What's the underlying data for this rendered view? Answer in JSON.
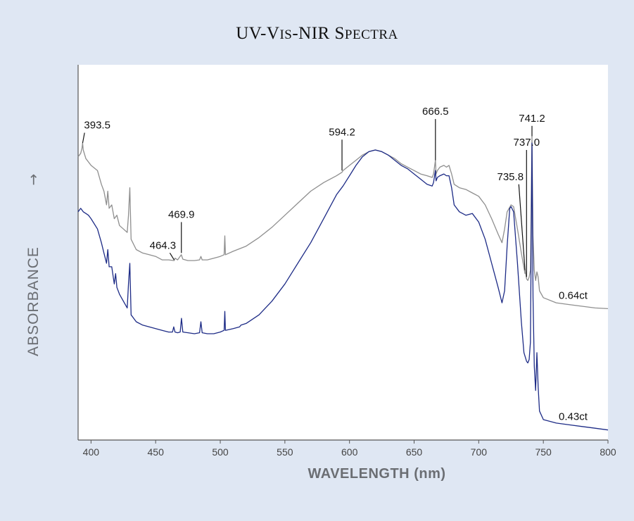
{
  "chart_data": {
    "type": "line",
    "title_parts": [
      {
        "text": "UV-V",
        "size": "lg"
      },
      {
        "text": "IS",
        "size": "sm"
      },
      {
        "text": "-NIR S",
        "size": "lg"
      },
      {
        "text": "PECTRA",
        "size": "sm"
      }
    ],
    "xlabel": "WAVELENGTH",
    "xlabel_unit": "(nm)",
    "ylabel": "ABSORBANCE",
    "ylabel_arrow": "→",
    "xlim": [
      390,
      800
    ],
    "ylim": [
      0,
      100
    ],
    "yaxis_ticks_visible": false,
    "xticks": [
      400,
      450,
      500,
      550,
      600,
      650,
      700,
      750,
      800
    ],
    "series": [
      {
        "name": "0.64ct",
        "color": "#8f8f8f",
        "points": [
          [
            390,
            81
          ],
          [
            392,
            82
          ],
          [
            393,
            83.5
          ],
          [
            393.5,
            85
          ],
          [
            394,
            83
          ],
          [
            396,
            80.5
          ],
          [
            400,
            78.5
          ],
          [
            405,
            77
          ],
          [
            408,
            73
          ],
          [
            410,
            71
          ],
          [
            412,
            67
          ],
          [
            413,
            71
          ],
          [
            414,
            66
          ],
          [
            416,
            67
          ],
          [
            418,
            63
          ],
          [
            420,
            64
          ],
          [
            422,
            61
          ],
          [
            425,
            60
          ],
          [
            428,
            59
          ],
          [
            429,
            64
          ],
          [
            430,
            72
          ],
          [
            431,
            57
          ],
          [
            435,
            54
          ],
          [
            440,
            53
          ],
          [
            445,
            52.5
          ],
          [
            450,
            52
          ],
          [
            455,
            51
          ],
          [
            460,
            51
          ],
          [
            464.3,
            50.8
          ],
          [
            465,
            51.5
          ],
          [
            467,
            51
          ],
          [
            469.9,
            52.5
          ],
          [
            471,
            51.2
          ],
          [
            475,
            50.8
          ],
          [
            480,
            50.8
          ],
          [
            484,
            51
          ],
          [
            485,
            52
          ],
          [
            486,
            51
          ],
          [
            490,
            51
          ],
          [
            495,
            51.5
          ],
          [
            500,
            52
          ],
          [
            503,
            52.5
          ],
          [
            503.5,
            58
          ],
          [
            504,
            52.5
          ],
          [
            510,
            53.5
          ],
          [
            520,
            55
          ],
          [
            530,
            57.5
          ],
          [
            540,
            60.5
          ],
          [
            550,
            64
          ],
          [
            560,
            67.5
          ],
          [
            570,
            71
          ],
          [
            580,
            73.5
          ],
          [
            590,
            75.5
          ],
          [
            594.2,
            76.5
          ],
          [
            595,
            77
          ],
          [
            600,
            78.5
          ],
          [
            605,
            80
          ],
          [
            610,
            81.5
          ],
          [
            615,
            82.5
          ],
          [
            620,
            83
          ],
          [
            625,
            82.5
          ],
          [
            630,
            81.5
          ],
          [
            635,
            80.5
          ],
          [
            640,
            79
          ],
          [
            645,
            78
          ],
          [
            650,
            77
          ],
          [
            655,
            76
          ],
          [
            660,
            75.5
          ],
          [
            664,
            75
          ],
          [
            665,
            76
          ],
          [
            666.5,
            80
          ],
          [
            667,
            76
          ],
          [
            668,
            77
          ],
          [
            670,
            78
          ],
          [
            673,
            78.5
          ],
          [
            675,
            78
          ],
          [
            677,
            78.5
          ],
          [
            679,
            76
          ],
          [
            681,
            73
          ],
          [
            685,
            72
          ],
          [
            690,
            71.5
          ],
          [
            695,
            70.5
          ],
          [
            700,
            69.5
          ],
          [
            705,
            67
          ],
          [
            710,
            63
          ],
          [
            715,
            58.5
          ],
          [
            718,
            56
          ],
          [
            720,
            60
          ],
          [
            722,
            65
          ],
          [
            725,
            67
          ],
          [
            727,
            66.5
          ],
          [
            730,
            60
          ],
          [
            733,
            53
          ],
          [
            735.8,
            47
          ],
          [
            736,
            48
          ],
          [
            737,
            45.5
          ],
          [
            738,
            45
          ],
          [
            739,
            46
          ],
          [
            740,
            48
          ],
          [
            741.2,
            87
          ],
          [
            742,
            58
          ],
          [
            743,
            48
          ],
          [
            744,
            45
          ],
          [
            745,
            47.5
          ],
          [
            746,
            46
          ],
          [
            747,
            42
          ],
          [
            750,
            40
          ],
          [
            760,
            38.5
          ],
          [
            770,
            38
          ],
          [
            780,
            37.5
          ],
          [
            790,
            37
          ],
          [
            800,
            36.8
          ]
        ]
      },
      {
        "name": "0.43ct",
        "color": "#1d2b86",
        "points": [
          [
            390,
            65
          ],
          [
            392,
            66
          ],
          [
            394,
            65
          ],
          [
            396,
            64.5
          ],
          [
            398,
            64
          ],
          [
            400,
            63
          ],
          [
            405,
            60
          ],
          [
            408,
            56
          ],
          [
            410,
            53
          ],
          [
            412,
            50
          ],
          [
            413,
            54
          ],
          [
            414,
            49
          ],
          [
            416,
            49
          ],
          [
            418,
            44
          ],
          [
            419,
            47
          ],
          [
            420,
            43
          ],
          [
            422,
            41
          ],
          [
            425,
            39
          ],
          [
            428,
            37
          ],
          [
            429,
            44
          ],
          [
            430,
            50
          ],
          [
            431,
            35
          ],
          [
            435,
            33
          ],
          [
            440,
            32
          ],
          [
            445,
            31.5
          ],
          [
            450,
            31
          ],
          [
            455,
            30.5
          ],
          [
            460,
            30
          ],
          [
            463,
            30
          ],
          [
            464,
            31.5
          ],
          [
            465,
            30
          ],
          [
            467,
            29.8
          ],
          [
            469,
            30
          ],
          [
            470,
            34
          ],
          [
            471,
            30
          ],
          [
            475,
            29.8
          ],
          [
            480,
            29.5
          ],
          [
            484,
            29.8
          ],
          [
            485,
            33
          ],
          [
            486,
            29.8
          ],
          [
            490,
            29.5
          ],
          [
            495,
            29.5
          ],
          [
            500,
            30
          ],
          [
            503,
            30.5
          ],
          [
            503.5,
            36
          ],
          [
            504,
            30.5
          ],
          [
            510,
            31
          ],
          [
            515,
            31.5
          ],
          [
            516,
            32
          ],
          [
            520,
            32.5
          ],
          [
            530,
            35
          ],
          [
            540,
            39
          ],
          [
            550,
            44
          ],
          [
            560,
            50
          ],
          [
            570,
            56
          ],
          [
            580,
            63
          ],
          [
            590,
            70
          ],
          [
            595,
            72.5
          ],
          [
            600,
            75.5
          ],
          [
            605,
            78.5
          ],
          [
            610,
            81
          ],
          [
            615,
            82.5
          ],
          [
            620,
            83
          ],
          [
            625,
            82.5
          ],
          [
            630,
            81.5
          ],
          [
            635,
            80
          ],
          [
            640,
            78.5
          ],
          [
            645,
            77.5
          ],
          [
            650,
            76
          ],
          [
            655,
            74.5
          ],
          [
            660,
            73
          ],
          [
            664,
            72.5
          ],
          [
            665,
            73.5
          ],
          [
            666.5,
            77
          ],
          [
            667,
            74
          ],
          [
            668,
            75
          ],
          [
            670,
            75.5
          ],
          [
            673,
            76
          ],
          [
            675,
            75.5
          ],
          [
            677,
            75.5
          ],
          [
            679,
            72
          ],
          [
            681,
            67
          ],
          [
            685,
            65
          ],
          [
            690,
            64
          ],
          [
            695,
            64.5
          ],
          [
            700,
            62
          ],
          [
            705,
            57
          ],
          [
            710,
            50
          ],
          [
            715,
            43
          ],
          [
            718,
            38.5
          ],
          [
            720,
            42
          ],
          [
            722,
            55
          ],
          [
            724,
            66
          ],
          [
            725,
            66.5
          ],
          [
            727,
            65
          ],
          [
            730,
            50
          ],
          [
            733,
            33
          ],
          [
            735,
            24
          ],
          [
            737,
            21.5
          ],
          [
            738,
            21
          ],
          [
            739,
            22
          ],
          [
            740,
            27
          ],
          [
            741.2,
            85
          ],
          [
            742,
            40
          ],
          [
            743,
            20
          ],
          [
            744,
            13
          ],
          [
            745,
            24
          ],
          [
            746,
            14
          ],
          [
            747,
            7
          ],
          [
            750,
            4.5
          ],
          [
            760,
            3.5
          ],
          [
            770,
            3
          ],
          [
            780,
            2.5
          ],
          [
            790,
            2
          ],
          [
            800,
            1.5
          ]
        ]
      }
    ],
    "peak_labels": [
      {
        "text": "393.5",
        "series": 0,
        "x": 393.5,
        "line": [
          [
            395,
            88
          ],
          [
            393.5,
            85
          ]
        ]
      },
      {
        "text": "464.3",
        "series": 0,
        "x": 464.3,
        "line": [
          [
            461,
            53
          ],
          [
            464.3,
            51
          ]
        ]
      },
      {
        "text": "469.9",
        "series": 0,
        "x": 469.9,
        "line": [
          [
            469.9,
            62
          ],
          [
            469.9,
            53
          ]
        ]
      },
      {
        "text": "594.2",
        "series": 0,
        "x": 594.2,
        "line": [
          [
            594.2,
            86
          ],
          [
            594.2,
            77
          ]
        ]
      },
      {
        "text": "666.5",
        "series": 0,
        "x": 666.5,
        "line": [
          [
            666.5,
            92
          ],
          [
            666.5,
            80
          ]
        ]
      },
      {
        "text": "735.8",
        "series": 0,
        "x": 735.8,
        "line": [
          [
            731,
            73
          ],
          [
            735.8,
            48
          ]
        ]
      },
      {
        "text": "737.0",
        "series": 0,
        "x": 737.0,
        "line": [
          [
            737,
            83
          ],
          [
            737,
            46
          ]
        ]
      },
      {
        "text": "741.2",
        "series": 0,
        "x": 741.2,
        "line": [
          [
            741.2,
            90
          ],
          [
            741.2,
            87
          ]
        ]
      }
    ],
    "series_labels": [
      {
        "text": "0.64ct",
        "series": 0
      },
      {
        "text": "0.43ct",
        "series": 1
      }
    ]
  }
}
